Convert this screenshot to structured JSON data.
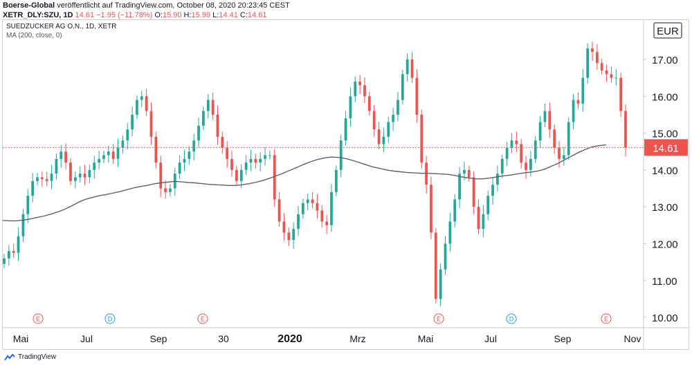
{
  "header": {
    "publisher": "Boerse-Global",
    "published_text": "veröffentlicht auf TradingView.com, October 08, 2020 20:23:45 CEST",
    "symbol_line": "XETR_DLY:SZU, 1D",
    "last": "14.61",
    "change": "−1.95 (−11.78%)",
    "o_label": "O:",
    "o": "15.90",
    "h_label": "H:",
    "h": "15.99",
    "l_label": "L:",
    "l": "14.41",
    "c_label": "C:",
    "c": "14.61"
  },
  "legend": {
    "instrument": "SUEDZUCKER AG O.N., 1D, XETR",
    "indicator": "MA (200, close, 0)"
  },
  "currency": "EUR",
  "footer": {
    "brand": "TradingView"
  },
  "colors": {
    "up": "#26a69a",
    "down": "#ef5350",
    "ma": "#5d606b",
    "price_line": "#ef5350"
  },
  "chart_data": {
    "type": "candlestick",
    "y_ticks": [
      "10.00",
      "11.00",
      "12.00",
      "13.00",
      "14.00",
      "15.00",
      "16.00",
      "17.00"
    ],
    "ylim": [
      9.72,
      18.05
    ],
    "x_ticks": [
      "Mai",
      "Jul",
      "Sep",
      "30",
      "2020",
      "Mrz",
      "Mai",
      "Jul",
      "Sep",
      "Nov"
    ],
    "x_ticks_bold": [
      "2020"
    ],
    "last_price": 14.61,
    "last_price_label": "14.61",
    "events": [
      {
        "label": "E",
        "type": "earnings"
      },
      {
        "label": "D",
        "type": "dividend"
      },
      {
        "label": "E",
        "type": "earnings"
      },
      {
        "label": "E",
        "type": "earnings"
      },
      {
        "label": "D",
        "type": "dividend"
      },
      {
        "label": "E",
        "type": "earnings"
      }
    ],
    "close_series": [
      11.6,
      11.8,
      11.75,
      12.2,
      12.8,
      13.3,
      13.7,
      13.8,
      13.75,
      13.7,
      13.9,
      14.3,
      14.5,
      14.2,
      13.7,
      13.8,
      13.9,
      13.8,
      14.0,
      14.2,
      14.3,
      14.4,
      14.5,
      14.3,
      14.6,
      14.8,
      15.1,
      15.5,
      15.9,
      16.0,
      15.6,
      14.9,
      14.2,
      13.5,
      13.4,
      13.5,
      13.9,
      14.2,
      14.3,
      14.5,
      14.8,
      15.2,
      15.6,
      15.9,
      15.5,
      14.9,
      14.6,
      14.3,
      14.0,
      13.7,
      14.0,
      14.2,
      14.3,
      14.2,
      14.3,
      14.4,
      14.4,
      13.2,
      12.6,
      12.3,
      12.1,
      12.4,
      12.8,
      13.1,
      13.2,
      13.1,
      12.9,
      12.6,
      12.5,
      13.4,
      14.0,
      14.8,
      15.4,
      16.0,
      16.4,
      16.3,
      16.0,
      15.6,
      15.1,
      14.7,
      14.9,
      15.3,
      15.5,
      15.9,
      16.6,
      17.0,
      16.5,
      15.5,
      14.2,
      13.6,
      12.3,
      10.5,
      11.3,
      12.0,
      12.6,
      13.2,
      13.9,
      14.0,
      13.8,
      13.0,
      12.4,
      12.8,
      13.3,
      13.6,
      13.9,
      14.3,
      14.6,
      14.8,
      14.7,
      14.2,
      14.0,
      14.3,
      14.8,
      15.3,
      15.6,
      15.1,
      14.6,
      14.3,
      14.4,
      15.3,
      15.9,
      15.8,
      16.5,
      17.3,
      17.2,
      16.9,
      16.7,
      16.6,
      16.5,
      16.5,
      15.6,
      14.61
    ],
    "ma_series": [
      12.63,
      12.62,
      12.62,
      12.64,
      12.67,
      12.71,
      12.75,
      12.8,
      12.86,
      12.93,
      13.02,
      13.12,
      13.2,
      13.25,
      13.3,
      13.33,
      13.37,
      13.41,
      13.46,
      13.51,
      13.55,
      13.58,
      13.62,
      13.65,
      13.67,
      13.69,
      13.68,
      13.66,
      13.65,
      13.63,
      13.61,
      13.6,
      13.59,
      13.58,
      13.58,
      13.6,
      13.63,
      13.67,
      13.72,
      13.78,
      13.85,
      13.92,
      14.0,
      14.08,
      14.16,
      14.23,
      14.29,
      14.33,
      14.35,
      14.34,
      14.31,
      14.26,
      14.2,
      14.14,
      14.08,
      14.04,
      14.0,
      13.97,
      13.95,
      13.93,
      13.92,
      13.91,
      13.91,
      13.9,
      13.89,
      13.88,
      13.85,
      13.81,
      13.78,
      13.76,
      13.76,
      13.78,
      13.81,
      13.84,
      13.86,
      13.89,
      13.92,
      13.94,
      13.97,
      14.02,
      14.1,
      14.18,
      14.28,
      14.38,
      14.48,
      14.56,
      14.63,
      14.66,
      14.68
    ]
  }
}
